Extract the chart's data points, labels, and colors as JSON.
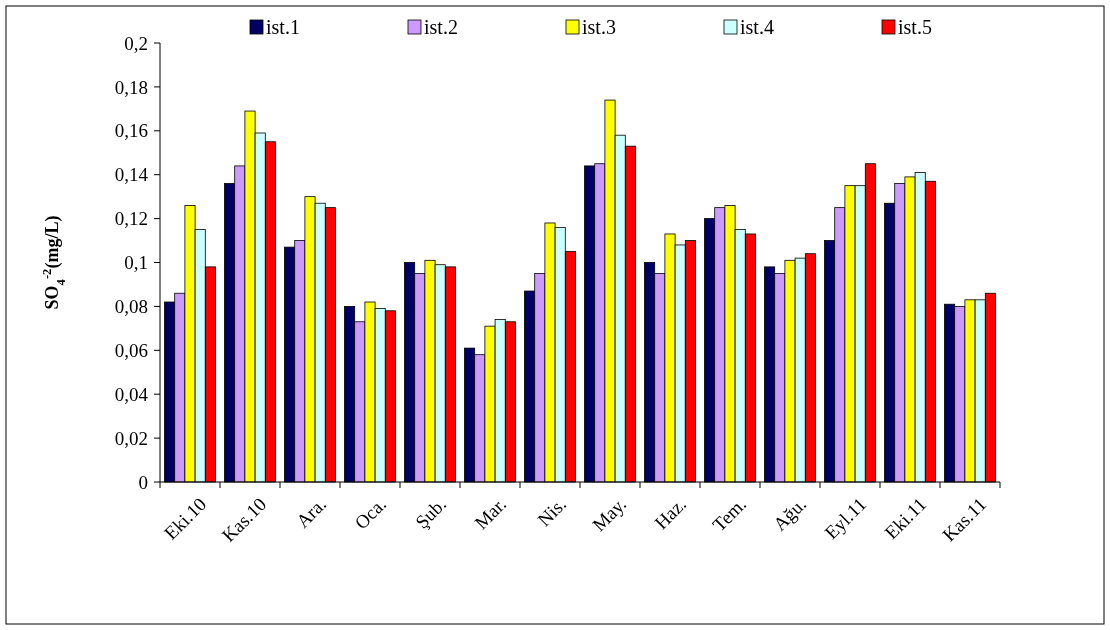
{
  "chart_data": {
    "type": "bar",
    "ylabel": "SO$_{4}$$^{-2}$(mg/L)",
    "categories": [
      "Eki.10",
      "Kas.10",
      "Ara.",
      "Oca.",
      "Şub.",
      "Mar.",
      "Nis.",
      "May.",
      "Haz.",
      "Tem.",
      "Ağu.",
      "Eyl.11",
      "Eki.11",
      "Kas.11"
    ],
    "series": [
      {
        "name": "ist.1",
        "color": "#000066",
        "values": [
          0.082,
          0.136,
          0.107,
          0.08,
          0.1,
          0.061,
          0.087,
          0.144,
          0.1,
          0.12,
          0.098,
          0.11,
          0.127,
          0.081
        ]
      },
      {
        "name": "ist.2",
        "color": "#cc99ff",
        "values": [
          0.086,
          0.144,
          0.11,
          0.073,
          0.095,
          0.058,
          0.095,
          0.145,
          0.095,
          0.125,
          0.095,
          0.125,
          0.136,
          0.08
        ]
      },
      {
        "name": "ist.3",
        "color": "#ffff00",
        "values": [
          0.126,
          0.169,
          0.13,
          0.082,
          0.101,
          0.071,
          0.118,
          0.174,
          0.113,
          0.126,
          0.101,
          0.135,
          0.139,
          0.083
        ]
      },
      {
        "name": "ist.4",
        "color": "#ccffff",
        "values": [
          0.115,
          0.159,
          0.127,
          0.079,
          0.099,
          0.074,
          0.116,
          0.158,
          0.108,
          0.115,
          0.102,
          0.135,
          0.141,
          0.083
        ]
      },
      {
        "name": "ist.5",
        "color": "#ff0000",
        "values": [
          0.098,
          0.155,
          0.125,
          0.078,
          0.098,
          0.073,
          0.105,
          0.153,
          0.11,
          0.113,
          0.104,
          0.145,
          0.137,
          0.086
        ]
      }
    ],
    "ylim": [
      0,
      0.2
    ],
    "yticks": [
      0,
      {
        "value": 0.02,
        "label": "0,02"
      },
      {
        "value": 0.04,
        "label": "0,04"
      },
      {
        "value": 0.06,
        "label": "0,06"
      },
      {
        "value": 0.08,
        "label": "0,08"
      },
      {
        "value": 0.1,
        "label": "0,1"
      },
      {
        "value": 0.12,
        "label": "0,12"
      },
      {
        "value": 0.14,
        "label": "0,14"
      },
      {
        "value": 0.16,
        "label": "0,16"
      },
      {
        "value": 0.18,
        "label": "0,18"
      },
      {
        "value": 0.2,
        "label": "0,2"
      }
    ],
    "grid": false,
    "legend": "top"
  }
}
